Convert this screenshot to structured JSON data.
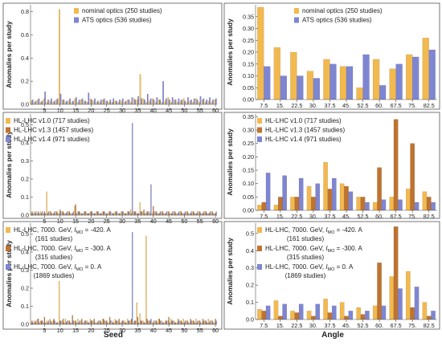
{
  "figure": {
    "xlabel_left": "Seed",
    "xlabel_right": "Angle",
    "ylabel": "Anomalies per study"
  },
  "chart_data": [
    {
      "type": "bar",
      "title": "",
      "xlabel": "",
      "ylabel": "Anomalies per study",
      "x": [
        1,
        2,
        3,
        4,
        5,
        6,
        7,
        8,
        9,
        10,
        11,
        12,
        13,
        14,
        15,
        16,
        17,
        18,
        19,
        20,
        21,
        22,
        23,
        24,
        25,
        26,
        27,
        28,
        29,
        30,
        31,
        32,
        33,
        34,
        35,
        36,
        37,
        38,
        39,
        40,
        41,
        42,
        43,
        44,
        45,
        46,
        47,
        48,
        49,
        50,
        51,
        52,
        53,
        54,
        55,
        56,
        57,
        58,
        59,
        60
      ],
      "xticks": [
        5,
        10,
        15,
        20,
        25,
        30,
        35,
        40,
        45,
        50,
        55,
        60
      ],
      "yticks": [
        "0.0",
        "0.2",
        "0.4",
        "0.6",
        "0.8"
      ],
      "ylim": [
        0,
        0.86
      ],
      "legend": "top-center",
      "series": [
        {
          "name": "nominal optics (250 studies)",
          "color": "#f2b94f",
          "values": [
            0.03,
            0.02,
            0.04,
            0.02,
            0.05,
            0.02,
            0.03,
            0.02,
            0.04,
            0.82,
            0.04,
            0.02,
            0.03,
            0.02,
            0.05,
            0.02,
            0.04,
            0.03,
            0.02,
            0.05,
            0.03,
            0.02,
            0.02,
            0.04,
            0.03,
            0.02,
            0.02,
            0.03,
            0.02,
            0.03,
            0.02,
            0.04,
            0.02,
            0.05,
            0.04,
            0.26,
            0.05,
            0.02,
            0.03,
            0.05,
            0.02,
            0.04,
            0.02,
            0.03,
            0.06,
            0.02,
            0.04,
            0.02,
            0.03,
            0.05,
            0.02,
            0.03,
            0.02,
            0.05,
            0.02,
            0.04,
            0.02,
            0.03,
            0.02,
            0.04
          ]
        },
        {
          "name": "ATS optics (536 studies)",
          "color": "#7e86d2",
          "values": [
            0.04,
            0.03,
            0.05,
            0.03,
            0.11,
            0.04,
            0.05,
            0.03,
            0.05,
            0.09,
            0.04,
            0.03,
            0.05,
            0.03,
            0.06,
            0.04,
            0.05,
            0.03,
            0.1,
            0.04,
            0.05,
            0.03,
            0.04,
            0.05,
            0.03,
            0.04,
            0.05,
            0.03,
            0.04,
            0.05,
            0.03,
            0.04,
            0.06,
            0.04,
            0.07,
            0.05,
            0.04,
            0.09,
            0.05,
            0.04,
            0.06,
            0.04,
            0.2,
            0.05,
            0.04,
            0.06,
            0.04,
            0.05,
            0.04,
            0.03,
            0.06,
            0.04,
            0.05,
            0.04,
            0.07,
            0.05,
            0.04,
            0.06,
            0.04,
            0.05
          ]
        }
      ]
    },
    {
      "type": "bar",
      "title": "",
      "xlabel": "",
      "ylabel": "Anomalies per study",
      "categories": [
        "7.5",
        "15.",
        "22.5",
        "30.",
        "37.5",
        "45.",
        "52.5",
        "60.",
        "67.5",
        "75.",
        "82.5"
      ],
      "yticks": [
        "0.00",
        "0.05",
        "0.10",
        "0.15",
        "0.20",
        "0.25",
        "0.30",
        "0.35"
      ],
      "ylim": [
        0,
        0.4
      ],
      "legend": "top-right",
      "series": [
        {
          "name": "nominal optics (250 studies)",
          "color": "#f2b94f",
          "values": [
            0.39,
            0.22,
            0.2,
            0.12,
            0.17,
            0.14,
            0.05,
            0.17,
            0.13,
            0.19,
            0.26
          ]
        },
        {
          "name": "ATS optics (536 studies)",
          "color": "#7e86d2",
          "values": [
            0.14,
            0.1,
            0.1,
            0.09,
            0.15,
            0.14,
            0.19,
            0.06,
            0.15,
            0.18,
            0.21
          ]
        }
      ]
    },
    {
      "type": "bar",
      "title": "",
      "xlabel": "",
      "ylabel": "Anomalies per study",
      "x": [
        1,
        2,
        3,
        4,
        5,
        6,
        7,
        8,
        9,
        10,
        11,
        12,
        13,
        14,
        15,
        16,
        17,
        18,
        19,
        20,
        21,
        22,
        23,
        24,
        25,
        26,
        27,
        28,
        29,
        30,
        31,
        32,
        33,
        34,
        35,
        36,
        37,
        38,
        39,
        40,
        41,
        42,
        43,
        44,
        45,
        46,
        47,
        48,
        49,
        50,
        51,
        52,
        53,
        54,
        55,
        56,
        57,
        58,
        59,
        60
      ],
      "xticks": [
        5,
        10,
        15,
        20,
        25,
        30,
        35,
        40,
        45,
        50,
        55,
        60
      ],
      "yticks": [
        "0.0",
        "0.1",
        "0.2",
        "0.3",
        "0.4",
        "0.5"
      ],
      "ylim": [
        0,
        0.56
      ],
      "legend": "top-left",
      "series": [
        {
          "name": "HL-LHC v1.0 (717 studies)",
          "color": "#f2b94f",
          "values": [
            0.01,
            0.02,
            0.01,
            0.02,
            0.01,
            0.13,
            0.02,
            0.01,
            0.02,
            0.01,
            0.02,
            0.01,
            0.02,
            0.01,
            0.05,
            0.02,
            0.01,
            0.02,
            0.01,
            0.02,
            0.01,
            0.02,
            0.01,
            0.02,
            0.01,
            0.02,
            0.01,
            0.02,
            0.01,
            0.02,
            0.01,
            0.02,
            0.03,
            0.02,
            0.01,
            0.07,
            0.02,
            0.01,
            0.02,
            0.01,
            0.02,
            0.01,
            0.02,
            0.01,
            0.02,
            0.01,
            0.02,
            0.01,
            0.02,
            0.01,
            0.02,
            0.01,
            0.02,
            0.01,
            0.02,
            0.01,
            0.02,
            0.01,
            0.02,
            0.01
          ]
        },
        {
          "name": "HL-LHC v1.3 (1457 studies)",
          "color": "#bf7330",
          "values": [
            0.02,
            0.01,
            0.02,
            0.01,
            0.02,
            0.01,
            0.02,
            0.01,
            0.02,
            0.03,
            0.02,
            0.01,
            0.02,
            0.01,
            0.06,
            0.02,
            0.01,
            0.02,
            0.01,
            0.02,
            0.01,
            0.02,
            0.01,
            0.02,
            0.01,
            0.02,
            0.01,
            0.02,
            0.01,
            0.02,
            0.01,
            0.02,
            0.01,
            0.02,
            0.01,
            0.02,
            0.03,
            0.02,
            0.01,
            0.05,
            0.02,
            0.01,
            0.02,
            0.01,
            0.02,
            0.01,
            0.02,
            0.01,
            0.02,
            0.01,
            0.02,
            0.01,
            0.02,
            0.01,
            0.02,
            0.01,
            0.02,
            0.01,
            0.02,
            0.01
          ]
        },
        {
          "name": "HL-LHC v1.4 (971 studies)",
          "color": "#7e86d2",
          "values": [
            0.01,
            0.02,
            0.01,
            0.02,
            0.01,
            0.02,
            0.01,
            0.02,
            0.01,
            0.02,
            0.01,
            0.02,
            0.01,
            0.02,
            0.01,
            0.02,
            0.01,
            0.02,
            0.01,
            0.02,
            0.01,
            0.02,
            0.01,
            0.02,
            0.01,
            0.02,
            0.01,
            0.02,
            0.01,
            0.02,
            0.01,
            0.02,
            0.51,
            0.02,
            0.01,
            0.02,
            0.01,
            0.02,
            0.17,
            0.02,
            0.01,
            0.02,
            0.01,
            0.02,
            0.01,
            0.02,
            0.01,
            0.02,
            0.01,
            0.02,
            0.01,
            0.02,
            0.01,
            0.02,
            0.01,
            0.02,
            0.01,
            0.02,
            0.01,
            0.02
          ]
        }
      ]
    },
    {
      "type": "bar",
      "title": "",
      "xlabel": "",
      "ylabel": "Anomalies per study",
      "categories": [
        "7.5",
        "15.",
        "22.5",
        "30.",
        "37.5",
        "45.",
        "52.5",
        "60.",
        "67.5",
        "75.",
        "82.5"
      ],
      "yticks": [
        "0.00",
        "0.05",
        "0.10",
        "0.15",
        "0.20",
        "0.25",
        "0.30",
        "0.35"
      ],
      "ylim": [
        0,
        0.36
      ],
      "legend": "top-left",
      "series": [
        {
          "name": "HL-LHC v1.0 (717 studies)",
          "color": "#f2b94f",
          "values": [
            0.02,
            0.02,
            0.05,
            0.09,
            0.18,
            0.1,
            0.05,
            0.03,
            0.05,
            0.08,
            0.07
          ]
        },
        {
          "name": "HL-LHC v1.3 (1457 studies)",
          "color": "#bf7330",
          "values": [
            0.03,
            0.05,
            0.05,
            0.05,
            0.08,
            0.09,
            0.05,
            0.16,
            0.34,
            0.25,
            0.05
          ]
        },
        {
          "name": "HL-LHC v1.4 (971 studies)",
          "color": "#7e86d2",
          "values": [
            0.14,
            0.13,
            0.12,
            0.1,
            0.12,
            0.07,
            0.03,
            0.04,
            0.04,
            0.03,
            0.03
          ]
        }
      ]
    },
    {
      "type": "bar",
      "title": "",
      "xlabel": "Seed",
      "ylabel": "Anomalies per study",
      "x": [
        1,
        2,
        3,
        4,
        5,
        6,
        7,
        8,
        9,
        10,
        11,
        12,
        13,
        14,
        15,
        16,
        17,
        18,
        19,
        20,
        21,
        22,
        23,
        24,
        25,
        26,
        27,
        28,
        29,
        30,
        31,
        32,
        33,
        34,
        35,
        36,
        37,
        38,
        39,
        40,
        41,
        42,
        43,
        44,
        45,
        46,
        47,
        48,
        49,
        50,
        51,
        52,
        53,
        54,
        55,
        56,
        57,
        58,
        59,
        60
      ],
      "xticks": [
        5,
        10,
        15,
        20,
        25,
        30,
        35,
        40,
        45,
        50,
        55,
        60
      ],
      "yticks": [
        "0.0",
        "0.1",
        "0.2",
        "0.3",
        "0.4",
        "0.5"
      ],
      "ylim": [
        0,
        0.56
      ],
      "legend": "top-left",
      "series": [
        {
          "name": "HL-LHC, 7000. GeV, I_MO = -420. A",
          "color": "#f2b94f",
          "values": [
            0.01,
            0.02,
            0.03,
            0.02,
            0.01,
            0.02,
            0.03,
            0.02,
            0.01,
            0.24,
            0.02,
            0.03,
            0.02,
            0.01,
            0.02,
            0.03,
            0.02,
            0.01,
            0.02,
            0.03,
            0.02,
            0.01,
            0.02,
            0.03,
            0.02,
            0.01,
            0.02,
            0.03,
            0.02,
            0.01,
            0.02,
            0.03,
            0.02,
            0.01,
            0.12,
            0.06,
            0.02,
            0.49,
            0.02,
            0.01,
            0.02,
            0.03,
            0.02,
            0.01,
            0.02,
            0.03,
            0.02,
            0.01,
            0.02,
            0.03,
            0.02,
            0.01,
            0.02,
            0.03,
            0.02,
            0.01,
            0.02,
            0.03,
            0.02,
            0.01
          ]
        },
        {
          "name": "HL-LHC, 7000. GeV, I_MO = -300. A",
          "color": "#bf7330",
          "values": [
            0.02,
            0.01,
            0.03,
            0.02,
            0.04,
            0.01,
            0.02,
            0.03,
            0.01,
            0.02,
            0.03,
            0.01,
            0.02,
            0.05,
            0.02,
            0.01,
            0.03,
            0.02,
            0.01,
            0.02,
            0.03,
            0.01,
            0.02,
            0.03,
            0.02,
            0.04,
            0.01,
            0.02,
            0.03,
            0.02,
            0.01,
            0.02,
            0.03,
            0.02,
            0.04,
            0.02,
            0.01,
            0.03,
            0.02,
            0.01,
            0.02,
            0.03,
            0.01,
            0.02,
            0.04,
            0.02,
            0.01,
            0.03,
            0.02,
            0.01,
            0.02,
            0.03,
            0.02,
            0.01,
            0.02,
            0.03,
            0.02,
            0.01,
            0.02,
            0.03
          ]
        },
        {
          "name": "HL-LHC, 7000. GeV, I_MO = 0. A",
          "color": "#7e86d2",
          "values": [
            0.01,
            0.02,
            0.01,
            0.02,
            0.01,
            0.02,
            0.01,
            0.02,
            0.01,
            0.02,
            0.01,
            0.02,
            0.01,
            0.02,
            0.01,
            0.02,
            0.01,
            0.02,
            0.01,
            0.02,
            0.01,
            0.02,
            0.01,
            0.02,
            0.01,
            0.02,
            0.01,
            0.02,
            0.01,
            0.02,
            0.01,
            0.02,
            0.51,
            0.02,
            0.01,
            0.02,
            0.01,
            0.02,
            0.03,
            0.02,
            0.01,
            0.02,
            0.01,
            0.02,
            0.01,
            0.02,
            0.01,
            0.02,
            0.01,
            0.02,
            0.01,
            0.02,
            0.01,
            0.02,
            0.01,
            0.02,
            0.01,
            0.02,
            0.01,
            0.02
          ]
        }
      ],
      "legend_counts": [
        "(161 studies)",
        "(315 studies)",
        "(1869 studies)"
      ]
    },
    {
      "type": "bar",
      "title": "",
      "xlabel": "Angle",
      "ylabel": "Anomalies per study",
      "categories": [
        "7.5",
        "15.",
        "22.5",
        "30.",
        "37.5",
        "45.",
        "52.5",
        "60.",
        "67.5",
        "75.",
        "82.5"
      ],
      "yticks": [
        "0.0",
        "0.1",
        "0.2",
        "0.3",
        "0.4",
        "0.5"
      ],
      "ylim": [
        0,
        0.56
      ],
      "legend": "top-left",
      "series": [
        {
          "name": "HL-LHC, 7000. GeV, I_MO = -420. A",
          "color": "#f2b94f",
          "values": [
            0.06,
            0.11,
            0.05,
            0.05,
            0.12,
            0.1,
            0.07,
            0.08,
            0.25,
            0.28,
            0.1
          ]
        },
        {
          "name": "HL-LHC, 7000. GeV, I_MO = -300. A",
          "color": "#bf7330",
          "values": [
            0.05,
            0.02,
            0.04,
            0.02,
            0.04,
            0.02,
            0.03,
            0.33,
            0.54,
            0.07,
            0.02
          ]
        },
        {
          "name": "HL-LHC, 7000. GeV, I_MO = 0. A",
          "color": "#7e86d2",
          "values": [
            0.08,
            0.09,
            0.09,
            0.09,
            0.08,
            0.05,
            0.05,
            0.08,
            0.18,
            0.19,
            0.05
          ]
        }
      ],
      "legend_counts": [
        "(161 studies)",
        "(315 studies)",
        "(1869 studies)"
      ]
    }
  ]
}
